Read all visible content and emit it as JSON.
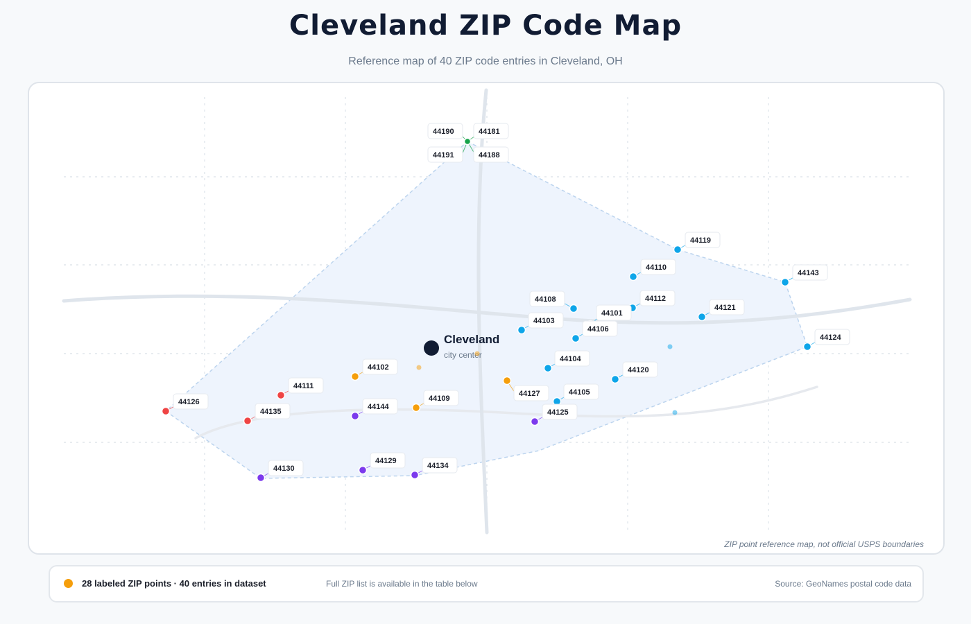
{
  "header": {
    "title": "Cleveland ZIP Code Map",
    "subtitle": "Reference map of 40 ZIP code entries in Cleveland, OH"
  },
  "map": {
    "center": {
      "name": "Cleveland",
      "sub": "city center"
    },
    "disclaimer": "ZIP point reference map, not official USPS boundaries",
    "colors": {
      "north": "#16a34a",
      "east": "#0ea5e9",
      "central": "#f59e0b",
      "west": "#ef4444",
      "south": "#7c3aed",
      "area_fill": "#eef4fd",
      "area_stroke": "#bcd4ee",
      "road": "#dfe5ec",
      "center_dot": "#111c33"
    },
    "labeled_points": [
      {
        "zip": "44190",
        "group": "north"
      },
      {
        "zip": "44181",
        "group": "north"
      },
      {
        "zip": "44191",
        "group": "north"
      },
      {
        "zip": "44188",
        "group": "north"
      },
      {
        "zip": "44119",
        "group": "east"
      },
      {
        "zip": "44110",
        "group": "east"
      },
      {
        "zip": "44143",
        "group": "east"
      },
      {
        "zip": "44108",
        "group": "east"
      },
      {
        "zip": "44112",
        "group": "east"
      },
      {
        "zip": "44101",
        "group": "east"
      },
      {
        "zip": "44121",
        "group": "east"
      },
      {
        "zip": "44103",
        "group": "east"
      },
      {
        "zip": "44106",
        "group": "east"
      },
      {
        "zip": "44124",
        "group": "east"
      },
      {
        "zip": "44104",
        "group": "east"
      },
      {
        "zip": "44120",
        "group": "east"
      },
      {
        "zip": "44105",
        "group": "east"
      },
      {
        "zip": "44102",
        "group": "central"
      },
      {
        "zip": "44109",
        "group": "central"
      },
      {
        "zip": "44127",
        "group": "central"
      },
      {
        "zip": "44111",
        "group": "west"
      },
      {
        "zip": "44126",
        "group": "west"
      },
      {
        "zip": "44135",
        "group": "west"
      },
      {
        "zip": "44144",
        "group": "south"
      },
      {
        "zip": "44125",
        "group": "south"
      },
      {
        "zip": "44130",
        "group": "south"
      },
      {
        "zip": "44129",
        "group": "south"
      },
      {
        "zip": "44134",
        "group": "south"
      }
    ]
  },
  "footer": {
    "legend_color": "#f59e0b",
    "count": "28 labeled ZIP points · 40 entries in dataset",
    "note": "Full ZIP list is available in the table below",
    "source": "Source: GeoNames postal code data"
  }
}
